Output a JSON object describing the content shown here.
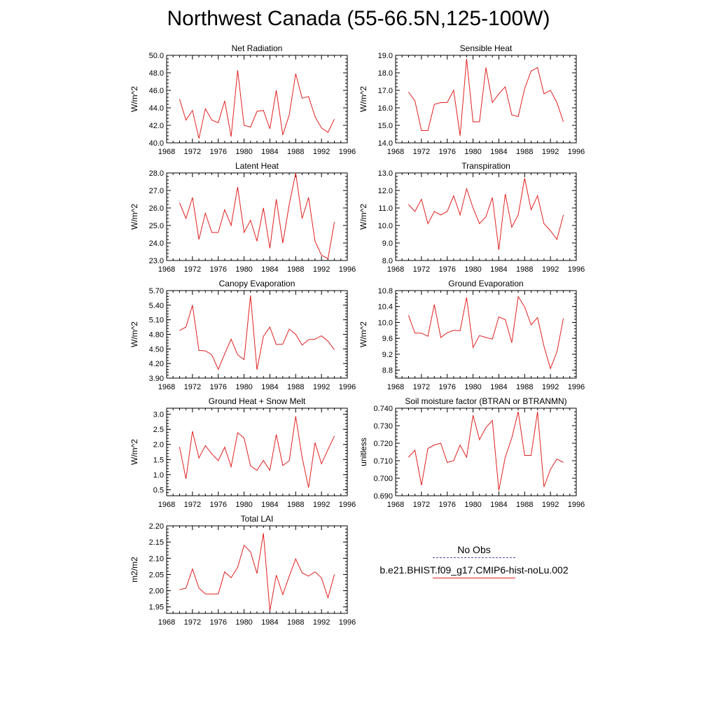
{
  "title": "Northwest Canada (55-66.5N,125-100W)",
  "legend": {
    "items": [
      {
        "label": "No Obs",
        "color": "#4b4bb0",
        "style": "dashed"
      },
      {
        "label": "b.e21.BHIST.f09_g17.CMIP6-hist-noLu.002",
        "color": "#e02020",
        "style": "solid"
      }
    ]
  },
  "chart_data": [
    {
      "type": "line",
      "title": "Net Radiation",
      "ylabel": "W/m^2",
      "xlim": [
        1968,
        1996
      ],
      "xticks": [
        1968,
        1972,
        1976,
        1980,
        1984,
        1988,
        1992,
        1996
      ],
      "ylim": [
        40.0,
        50.0
      ],
      "yticks": [
        "40.0",
        "42.0",
        "44.0",
        "46.0",
        "48.0",
        "50.0"
      ],
      "x": [
        1970,
        1971,
        1972,
        1973,
        1974,
        1975,
        1976,
        1977,
        1978,
        1979,
        1980,
        1981,
        1982,
        1983,
        1984,
        1985,
        1986,
        1987,
        1988,
        1989,
        1990,
        1991,
        1992,
        1993,
        1994
      ],
      "series": [
        {
          "name": "b.e21.BHIST.f09_g17.CMIP6-hist-noLu.002",
          "color": "#e02020",
          "values": [
            45.0,
            42.6,
            43.7,
            40.5,
            43.9,
            42.6,
            42.3,
            44.8,
            40.7,
            48.3,
            42.0,
            41.8,
            43.6,
            43.7,
            41.6,
            46.0,
            40.9,
            43.2,
            47.9,
            45.1,
            45.3,
            43.0,
            41.7,
            41.2,
            42.7
          ]
        }
      ]
    },
    {
      "type": "line",
      "title": "Sensible Heat",
      "ylabel": "W/m^2",
      "xlim": [
        1968,
        1996
      ],
      "xticks": [
        1968,
        1972,
        1976,
        1980,
        1984,
        1988,
        1992,
        1996
      ],
      "ylim": [
        14.0,
        19.0
      ],
      "yticks": [
        "14.0",
        "15.0",
        "16.0",
        "17.0",
        "18.0",
        "19.0"
      ],
      "x": [
        1970,
        1971,
        1972,
        1973,
        1974,
        1975,
        1976,
        1977,
        1978,
        1979,
        1980,
        1981,
        1982,
        1983,
        1984,
        1985,
        1986,
        1987,
        1988,
        1989,
        1990,
        1991,
        1992,
        1993,
        1994
      ],
      "series": [
        {
          "name": "b.e21.BHIST.f09_g17.CMIP6-hist-noLu.002",
          "color": "#e02020",
          "values": [
            16.9,
            16.4,
            14.7,
            14.7,
            16.2,
            16.3,
            16.3,
            17.0,
            14.4,
            18.8,
            15.2,
            15.2,
            18.3,
            16.3,
            16.8,
            17.2,
            15.6,
            15.5,
            17.1,
            18.1,
            18.3,
            16.8,
            17.0,
            16.3,
            15.2
          ]
        }
      ]
    },
    {
      "type": "line",
      "title": "Latent Heat",
      "ylabel": "W/m^2",
      "xlim": [
        1968,
        1996
      ],
      "xticks": [
        1968,
        1972,
        1976,
        1980,
        1984,
        1988,
        1992,
        1996
      ],
      "ylim": [
        23.0,
        28.0
      ],
      "yticks": [
        "23.0",
        "24.0",
        "25.0",
        "26.0",
        "27.0",
        "28.0"
      ],
      "x": [
        1970,
        1971,
        1972,
        1973,
        1974,
        1975,
        1976,
        1977,
        1978,
        1979,
        1980,
        1981,
        1982,
        1983,
        1984,
        1985,
        1986,
        1987,
        1988,
        1989,
        1990,
        1991,
        1992,
        1993,
        1994
      ],
      "series": [
        {
          "name": "b.e21.BHIST.f09_g17.CMIP6-hist-noLu.002",
          "color": "#e02020",
          "values": [
            26.3,
            25.4,
            26.6,
            24.2,
            25.7,
            24.6,
            24.6,
            25.9,
            25.0,
            27.2,
            24.6,
            25.3,
            24.1,
            26.0,
            23.7,
            26.5,
            24.0,
            26.2,
            28.0,
            25.4,
            26.6,
            24.1,
            23.3,
            23.1,
            25.2
          ]
        }
      ]
    },
    {
      "type": "line",
      "title": "Transpiration",
      "ylabel": "W/m^2",
      "xlim": [
        1968,
        1996
      ],
      "xticks": [
        1968,
        1972,
        1976,
        1980,
        1984,
        1988,
        1992,
        1996
      ],
      "ylim": [
        8.0,
        13.0
      ],
      "yticks": [
        "8.0",
        "9.0",
        "10.0",
        "11.0",
        "12.0",
        "13.0"
      ],
      "x": [
        1970,
        1971,
        1972,
        1973,
        1974,
        1975,
        1976,
        1977,
        1978,
        1979,
        1980,
        1981,
        1982,
        1983,
        1984,
        1985,
        1986,
        1987,
        1988,
        1989,
        1990,
        1991,
        1992,
        1993,
        1994
      ],
      "series": [
        {
          "name": "b.e21.BHIST.f09_g17.CMIP6-hist-noLu.002",
          "color": "#e02020",
          "values": [
            11.2,
            10.8,
            11.5,
            10.1,
            10.8,
            10.6,
            10.8,
            11.7,
            10.6,
            12.1,
            11.0,
            10.1,
            10.5,
            11.6,
            8.6,
            11.8,
            9.9,
            10.6,
            12.7,
            10.9,
            11.7,
            10.1,
            9.7,
            9.2,
            10.6
          ]
        }
      ]
    },
    {
      "type": "line",
      "title": "Canopy Evaporation",
      "ylabel": "W/m^2",
      "xlim": [
        1968,
        1996
      ],
      "xticks": [
        1968,
        1972,
        1976,
        1980,
        1984,
        1988,
        1992,
        1996
      ],
      "ylim": [
        3.9,
        5.7
      ],
      "yticks": [
        "3.90",
        "4.20",
        "4.50",
        "4.80",
        "5.10",
        "5.40",
        "5.70"
      ],
      "x": [
        1970,
        1971,
        1972,
        1973,
        1974,
        1975,
        1976,
        1977,
        1978,
        1979,
        1980,
        1981,
        1982,
        1983,
        1984,
        1985,
        1986,
        1987,
        1988,
        1989,
        1990,
        1991,
        1992,
        1993,
        1994
      ],
      "series": [
        {
          "name": "b.e21.BHIST.f09_g17.CMIP6-hist-noLu.002",
          "color": "#e02020",
          "values": [
            4.88,
            4.95,
            5.4,
            4.47,
            4.46,
            4.38,
            4.08,
            4.4,
            4.7,
            4.38,
            4.28,
            5.6,
            4.07,
            4.76,
            4.95,
            4.59,
            4.6,
            4.91,
            4.8,
            4.58,
            4.69,
            4.7,
            4.77,
            4.66,
            4.48
          ]
        }
      ]
    },
    {
      "type": "line",
      "title": "Ground Evaporation",
      "ylabel": "W/m^2",
      "xlim": [
        1968,
        1996
      ],
      "xticks": [
        1968,
        1972,
        1976,
        1980,
        1984,
        1988,
        1992,
        1996
      ],
      "ylim": [
        8.6,
        10.8
      ],
      "yticks": [
        "8.8",
        "9.2",
        "9.6",
        "10.0",
        "10.4",
        "10.8"
      ],
      "x": [
        1970,
        1971,
        1972,
        1973,
        1974,
        1975,
        1976,
        1977,
        1978,
        1979,
        1980,
        1981,
        1982,
        1983,
        1984,
        1985,
        1986,
        1987,
        1988,
        1989,
        1990,
        1991,
        1992,
        1993,
        1994
      ],
      "series": [
        {
          "name": "b.e21.BHIST.f09_g17.CMIP6-hist-noLu.002",
          "color": "#e02020",
          "values": [
            10.18,
            9.73,
            9.73,
            9.65,
            10.45,
            9.62,
            9.74,
            9.8,
            9.79,
            10.63,
            9.37,
            9.67,
            9.62,
            9.58,
            10.14,
            10.07,
            9.49,
            10.65,
            10.39,
            9.94,
            10.12,
            9.4,
            8.84,
            9.26,
            10.1
          ]
        }
      ]
    },
    {
      "type": "line",
      "title": "Ground Heat + Snow Melt",
      "ylabel": "W/m^2",
      "xlim": [
        1968,
        1996
      ],
      "xticks": [
        1968,
        1972,
        1976,
        1980,
        1984,
        1988,
        1992,
        1996
      ],
      "ylim": [
        0.3,
        3.2
      ],
      "yticks": [
        "0.5",
        "1.0",
        "1.5",
        "2.0",
        "2.5",
        "3.0"
      ],
      "x": [
        1970,
        1971,
        1972,
        1973,
        1974,
        1975,
        1976,
        1977,
        1978,
        1979,
        1980,
        1981,
        1982,
        1983,
        1984,
        1985,
        1986,
        1987,
        1988,
        1989,
        1990,
        1991,
        1992,
        1993,
        1994
      ],
      "series": [
        {
          "name": "b.e21.BHIST.f09_g17.CMIP6-hist-noLu.002",
          "color": "#e02020",
          "values": [
            1.92,
            0.86,
            2.44,
            1.55,
            1.96,
            1.69,
            1.46,
            1.91,
            1.26,
            2.39,
            2.21,
            1.29,
            1.14,
            1.47,
            1.14,
            2.33,
            1.3,
            1.46,
            2.93,
            1.57,
            0.57,
            2.06,
            1.36,
            1.83,
            2.28
          ]
        }
      ]
    },
    {
      "type": "line",
      "title": "Soil moisture factor (BTRAN or BTRANMN)",
      "ylabel": "unitless",
      "xlim": [
        1968,
        1996
      ],
      "xticks": [
        1968,
        1972,
        1976,
        1980,
        1984,
        1988,
        1992,
        1996
      ],
      "ylim": [
        0.69,
        0.74
      ],
      "yticks": [
        "0.690",
        "0.700",
        "0.710",
        "0.720",
        "0.730",
        "0.740"
      ],
      "x": [
        1970,
        1971,
        1972,
        1973,
        1974,
        1975,
        1976,
        1977,
        1978,
        1979,
        1980,
        1981,
        1982,
        1983,
        1984,
        1985,
        1986,
        1987,
        1988,
        1989,
        1990,
        1991,
        1992,
        1993,
        1994
      ],
      "series": [
        {
          "name": "b.e21.BHIST.f09_g17.CMIP6-hist-noLu.002",
          "color": "#e02020",
          "values": [
            0.712,
            0.716,
            0.696,
            0.717,
            0.719,
            0.72,
            0.709,
            0.71,
            0.719,
            0.712,
            0.736,
            0.722,
            0.729,
            0.733,
            0.693,
            0.712,
            0.723,
            0.738,
            0.713,
            0.713,
            0.738,
            0.695,
            0.705,
            0.711,
            0.709
          ]
        }
      ]
    },
    {
      "type": "line",
      "title": "Total LAI",
      "ylabel": "m2/m2",
      "xlim": [
        1968,
        1996
      ],
      "xticks": [
        1968,
        1972,
        1976,
        1980,
        1984,
        1988,
        1992,
        1996
      ],
      "ylim": [
        1.93,
        2.2
      ],
      "yticks": [
        "1.95",
        "2.00",
        "2.05",
        "2.10",
        "2.15",
        "2.20"
      ],
      "x": [
        1970,
        1971,
        1972,
        1973,
        1974,
        1975,
        1976,
        1977,
        1978,
        1979,
        1980,
        1981,
        1982,
        1983,
        1984,
        1985,
        1986,
        1987,
        1988,
        1989,
        1990,
        1991,
        1992,
        1993,
        1994
      ],
      "series": [
        {
          "name": "b.e21.BHIST.f09_g17.CMIP6-hist-noLu.002",
          "color": "#e02020",
          "values": [
            2.003,
            2.008,
            2.067,
            2.008,
            1.99,
            1.99,
            1.99,
            2.058,
            2.04,
            2.072,
            2.14,
            2.12,
            2.053,
            2.177,
            1.938,
            2.048,
            1.988,
            2.045,
            2.098,
            2.055,
            2.045,
            2.058,
            2.04,
            1.978,
            2.05
          ]
        }
      ]
    }
  ]
}
